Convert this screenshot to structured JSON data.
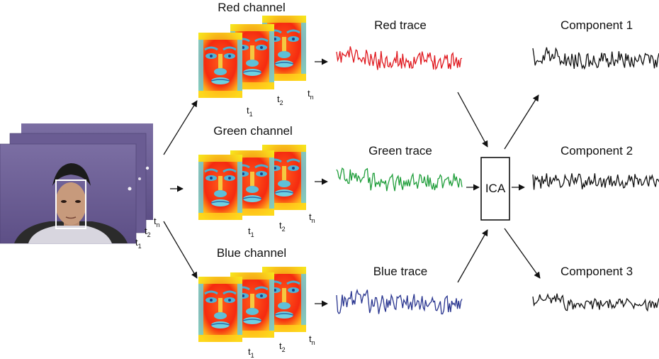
{
  "labels": {
    "red_channel": "Red channel",
    "green_channel": "Green channel",
    "blue_channel": "Blue channel",
    "red_trace": "Red trace",
    "green_trace": "Green trace",
    "blue_trace": "Blue trace",
    "ica": "ICA",
    "component_1": "Component 1",
    "component_2": "Component 2",
    "component_3": "Component 3"
  },
  "time_labels": {
    "base": "t",
    "sub_1": "1",
    "sub_2": "2",
    "sub_n": "n"
  },
  "colors": {
    "red": "#e0191f",
    "green": "#1f9e3a",
    "blue": "#28348f",
    "component": "#111111",
    "frame_bg": "#6e5f95",
    "face_box": "#ffffff"
  }
}
